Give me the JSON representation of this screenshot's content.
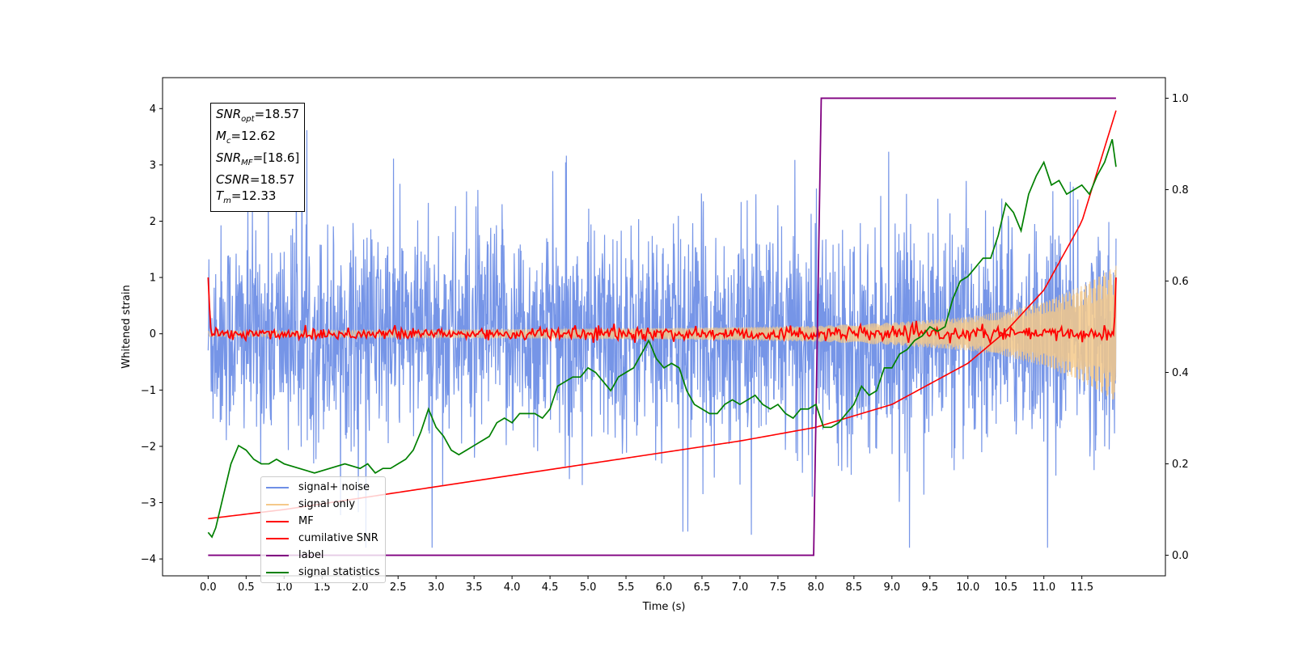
{
  "chart_data": {
    "type": "line",
    "xlabel": "Time (s)",
    "ylabel": "Whitened strain",
    "xlim": [
      -0.6,
      12.6
    ],
    "ylim": [
      -4.3,
      4.55
    ],
    "y2lim": [
      -0.045,
      1.045
    ],
    "xticks": [
      0.0,
      0.5,
      1.0,
      1.5,
      2.0,
      2.5,
      3.0,
      3.5,
      4.0,
      4.5,
      5.0,
      5.5,
      6.0,
      6.5,
      7.0,
      7.5,
      8.0,
      8.5,
      9.0,
      9.5,
      10.0,
      10.5,
      11.0,
      11.5
    ],
    "xtick_labels": [
      "0.0",
      "0.5",
      "1.0",
      "1.5",
      "2.0",
      "2.5",
      "3.0",
      "3.5",
      "4.0",
      "4.5",
      "5.0",
      "5.5",
      "6.0",
      "6.5",
      "7.0",
      "7.5",
      "8.0",
      "8.5",
      "9.0",
      "9.5",
      "10.0",
      "10.5",
      "11.0",
      "11.5"
    ],
    "yticks": [
      -4,
      -3,
      -2,
      -1,
      0,
      1,
      2,
      3,
      4
    ],
    "ytick_labels": [
      "−4",
      "−3",
      "−2",
      "−1",
      "0",
      "1",
      "2",
      "3",
      "4"
    ],
    "y2ticks": [
      0.0,
      0.2,
      0.4,
      0.6,
      0.8,
      1.0
    ],
    "y2tick_labels": [
      "0.0",
      "0.2",
      "0.4",
      "0.6",
      "0.8",
      "1.0"
    ],
    "grid": false,
    "legend_position": "lower-left",
    "annotation": {
      "snr_opt": "18.57",
      "mc": "12.62",
      "snr_mf": "[18.6]",
      "csnr": "18.57",
      "tm": "12.33"
    },
    "series": [
      {
        "name": "signal+ noise",
        "color": "#6f8fe6",
        "axis": "left",
        "description_envelope": {
          "x": [
            0,
            12
          ],
          "typical_abs": 1.6,
          "max": 4.2,
          "min": -3.8
        }
      },
      {
        "name": "signal only",
        "color": "#f5c98a",
        "axis": "left",
        "envelope": {
          "x": [
            0,
            2,
            4,
            6,
            8,
            9,
            10,
            10.5,
            11,
            11.5,
            12
          ],
          "amp": [
            0.05,
            0.06,
            0.08,
            0.1,
            0.14,
            0.2,
            0.3,
            0.4,
            0.58,
            0.85,
            1.25
          ]
        }
      },
      {
        "name": "MF",
        "color": "#ff0000",
        "axis": "left",
        "start_value": 1.0,
        "end_value": 1.0,
        "baseline": 0.0,
        "noise_amp": 0.06
      },
      {
        "name": "cumilative SNR",
        "color": "#ff0000",
        "axis": "right",
        "x": [
          0,
          1,
          2,
          3,
          4,
          5,
          6,
          7,
          8,
          9,
          10,
          10.5,
          11,
          11.5,
          12
        ],
        "y": [
          0.08,
          0.1,
          0.125,
          0.15,
          0.175,
          0.2,
          0.225,
          0.25,
          0.28,
          0.33,
          0.42,
          0.49,
          0.58,
          0.73,
          1.0
        ]
      },
      {
        "name": "label",
        "color": "#800080",
        "axis": "right",
        "x": [
          0,
          7.97,
          8.07,
          11.95
        ],
        "y": [
          0.0,
          0.0,
          1.0,
          1.0
        ]
      },
      {
        "name": "signal statistics",
        "color": "#008000",
        "axis": "right",
        "x": [
          0.0,
          0.05,
          0.1,
          0.2,
          0.3,
          0.4,
          0.5,
          0.6,
          0.7,
          0.8,
          0.9,
          1.0,
          1.2,
          1.4,
          1.6,
          1.8,
          2.0,
          2.1,
          2.2,
          2.3,
          2.4,
          2.5,
          2.6,
          2.7,
          2.8,
          2.9,
          3.0,
          3.1,
          3.2,
          3.3,
          3.4,
          3.5,
          3.6,
          3.7,
          3.8,
          3.9,
          4.0,
          4.1,
          4.2,
          4.3,
          4.4,
          4.5,
          4.6,
          4.7,
          4.8,
          4.9,
          5.0,
          5.1,
          5.2,
          5.3,
          5.4,
          5.5,
          5.6,
          5.7,
          5.8,
          5.9,
          6.0,
          6.1,
          6.2,
          6.3,
          6.4,
          6.5,
          6.6,
          6.7,
          6.8,
          6.9,
          7.0,
          7.1,
          7.2,
          7.3,
          7.4,
          7.5,
          7.6,
          7.7,
          7.8,
          7.9,
          8.0,
          8.1,
          8.2,
          8.3,
          8.4,
          8.5,
          8.6,
          8.7,
          8.8,
          8.9,
          9.0,
          9.1,
          9.2,
          9.3,
          9.4,
          9.5,
          9.6,
          9.7,
          9.8,
          9.9,
          10.0,
          10.1,
          10.2,
          10.3,
          10.4,
          10.5,
          10.6,
          10.7,
          10.8,
          10.9,
          11.0,
          11.1,
          11.2,
          11.3,
          11.4,
          11.5,
          11.6,
          11.7,
          11.8,
          11.9,
          11.95
        ],
        "y": [
          0.05,
          0.04,
          0.06,
          0.13,
          0.2,
          0.24,
          0.23,
          0.21,
          0.2,
          0.2,
          0.21,
          0.2,
          0.19,
          0.18,
          0.19,
          0.2,
          0.19,
          0.2,
          0.18,
          0.19,
          0.19,
          0.2,
          0.21,
          0.23,
          0.27,
          0.32,
          0.28,
          0.26,
          0.23,
          0.22,
          0.23,
          0.24,
          0.25,
          0.26,
          0.29,
          0.3,
          0.29,
          0.31,
          0.31,
          0.31,
          0.3,
          0.32,
          0.37,
          0.38,
          0.39,
          0.39,
          0.41,
          0.4,
          0.38,
          0.36,
          0.39,
          0.4,
          0.41,
          0.44,
          0.47,
          0.43,
          0.41,
          0.42,
          0.41,
          0.36,
          0.33,
          0.32,
          0.31,
          0.31,
          0.33,
          0.34,
          0.33,
          0.34,
          0.35,
          0.33,
          0.32,
          0.33,
          0.31,
          0.3,
          0.32,
          0.32,
          0.33,
          0.28,
          0.28,
          0.29,
          0.31,
          0.33,
          0.37,
          0.35,
          0.36,
          0.41,
          0.41,
          0.44,
          0.45,
          0.47,
          0.48,
          0.5,
          0.49,
          0.5,
          0.56,
          0.6,
          0.61,
          0.63,
          0.65,
          0.65,
          0.7,
          0.77,
          0.75,
          0.71,
          0.79,
          0.83,
          0.86,
          0.81,
          0.82,
          0.79,
          0.8,
          0.81,
          0.79,
          0.83,
          0.86,
          0.91,
          0.85
        ]
      }
    ]
  }
}
